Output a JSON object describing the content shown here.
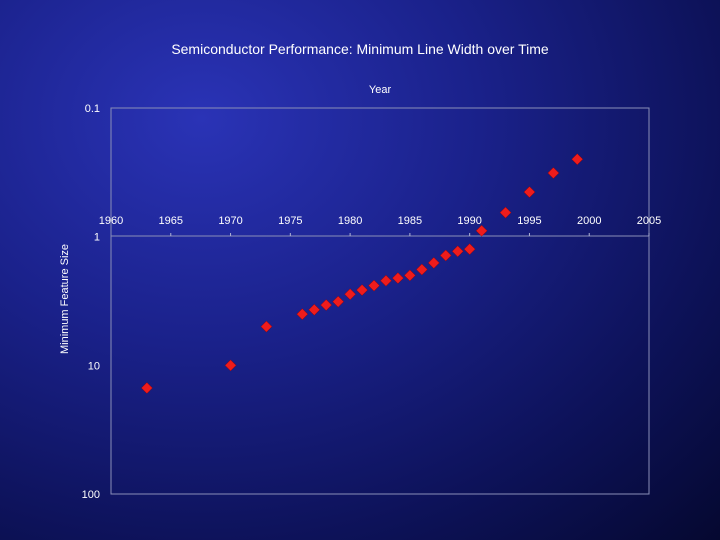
{
  "chart_data": {
    "type": "scatter",
    "title": "Semiconductor Performance: Minimum Line Width over Time",
    "xlabel": "Year",
    "ylabel": "Minimum Feature Size",
    "x_axis_position": "top",
    "y_scale": "log",
    "y_reversed": true,
    "xlim": [
      1960,
      2005
    ],
    "ylim": [
      0.1,
      100
    ],
    "x_ticks": [
      "1960",
      "1965",
      "1970",
      "1975",
      "1980",
      "1985",
      "1990",
      "1995",
      "2000",
      "2005"
    ],
    "y_ticks": [
      "0.1",
      "1",
      "10",
      "100"
    ],
    "x_tick_values": [
      1960,
      1965,
      1970,
      1975,
      1980,
      1985,
      1990,
      1995,
      2000,
      2005
    ],
    "y_tick_values": [
      0.1,
      1,
      10,
      100
    ],
    "marker": "diamond",
    "marker_color": "#ee1c1c",
    "grid": false,
    "series": [
      {
        "name": "Minimum Feature Size",
        "x": [
          1963,
          1970,
          1973,
          1976,
          1977,
          1978,
          1979,
          1980,
          1981,
          1982,
          1983,
          1984,
          1985,
          1986,
          1987,
          1988,
          1989,
          1990,
          1991,
          1993,
          1995,
          1997,
          1999
        ],
        "y": [
          15,
          10,
          5,
          4,
          3.7,
          3.4,
          3.2,
          2.8,
          2.6,
          2.4,
          2.2,
          2.1,
          2,
          1.8,
          1.6,
          1.4,
          1.3,
          1.25,
          0.9,
          0.65,
          0.45,
          0.32,
          0.25
        ]
      }
    ]
  }
}
